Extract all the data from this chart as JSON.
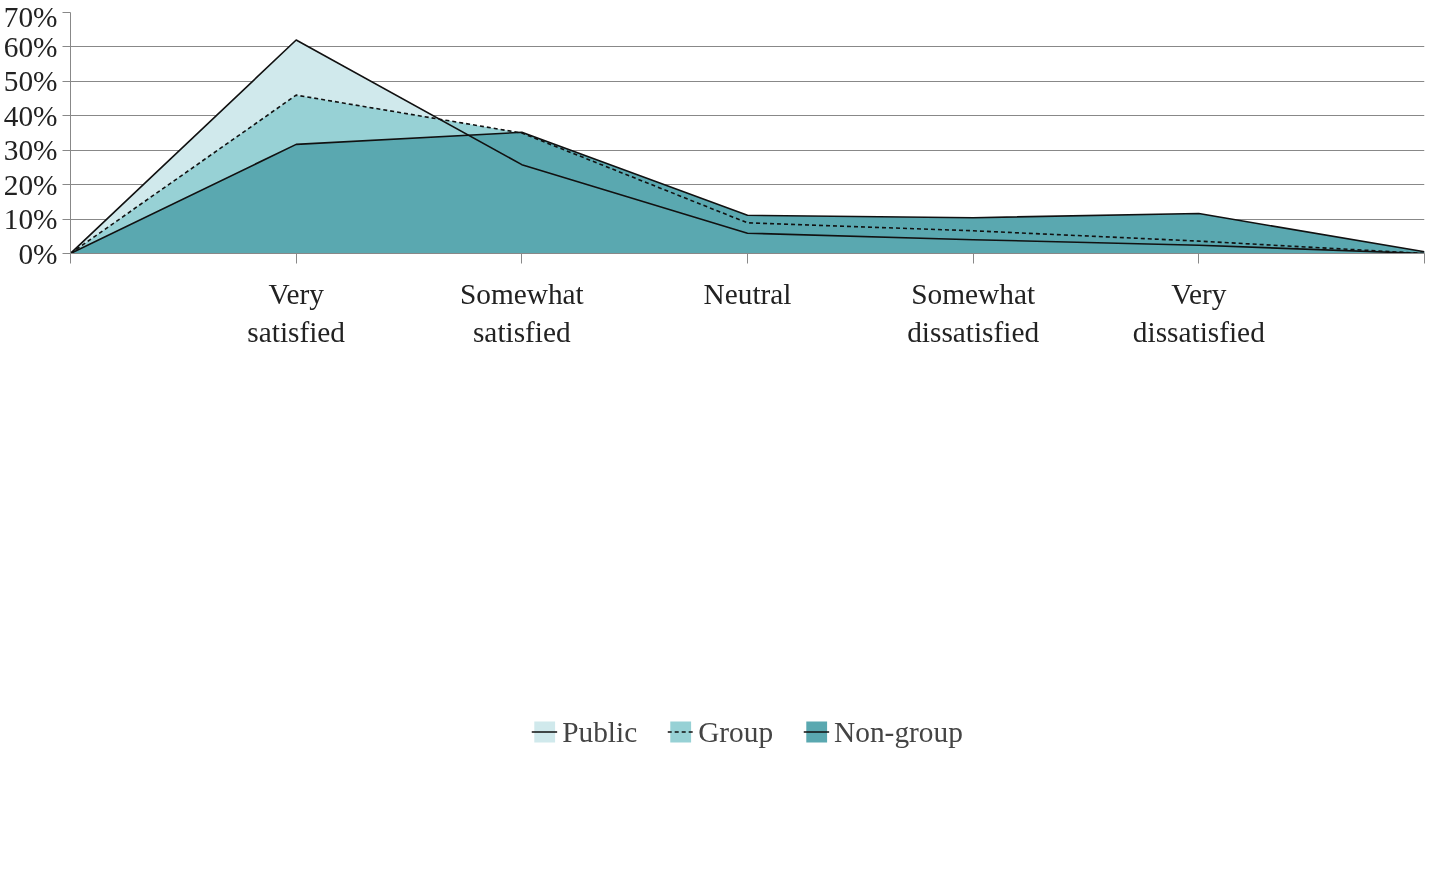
{
  "chart_data": {
    "type": "area",
    "categories": [
      null,
      "Very satisfied",
      "Somewhat satisfied",
      "Neutral",
      "Somewhat dissatisfied",
      "Very dissatisfied",
      null
    ],
    "series": [
      {
        "name": "Public",
        "color": "#d0e9ec",
        "line_style": "solid",
        "values": [
          0,
          62,
          25.8,
          5.9,
          4.0,
          2.4,
          0
        ]
      },
      {
        "name": "Group",
        "color": "#97d1d5",
        "line_style": "dashed",
        "values": [
          0,
          46,
          35,
          8.9,
          6.6,
          3.6,
          0
        ]
      },
      {
        "name": "Non-group",
        "color": "#5aa8b0",
        "line_style": "solid",
        "values": [
          0,
          31.7,
          35.2,
          11.1,
          10.4,
          11.6,
          0.5
        ]
      }
    ],
    "ylim": [
      0,
      70
    ],
    "yticks": [
      {
        "value": 0,
        "label": "0%"
      },
      {
        "value": 10,
        "label": "10%"
      },
      {
        "value": 20,
        "label": "20%"
      },
      {
        "value": 30,
        "label": "30%"
      },
      {
        "value": 40,
        "label": "40%"
      },
      {
        "value": 50,
        "label": "50%"
      },
      {
        "value": 60,
        "label": "60%"
      },
      {
        "value": 70,
        "label": "70%"
      }
    ],
    "grid": "y",
    "legend": "bottom"
  }
}
